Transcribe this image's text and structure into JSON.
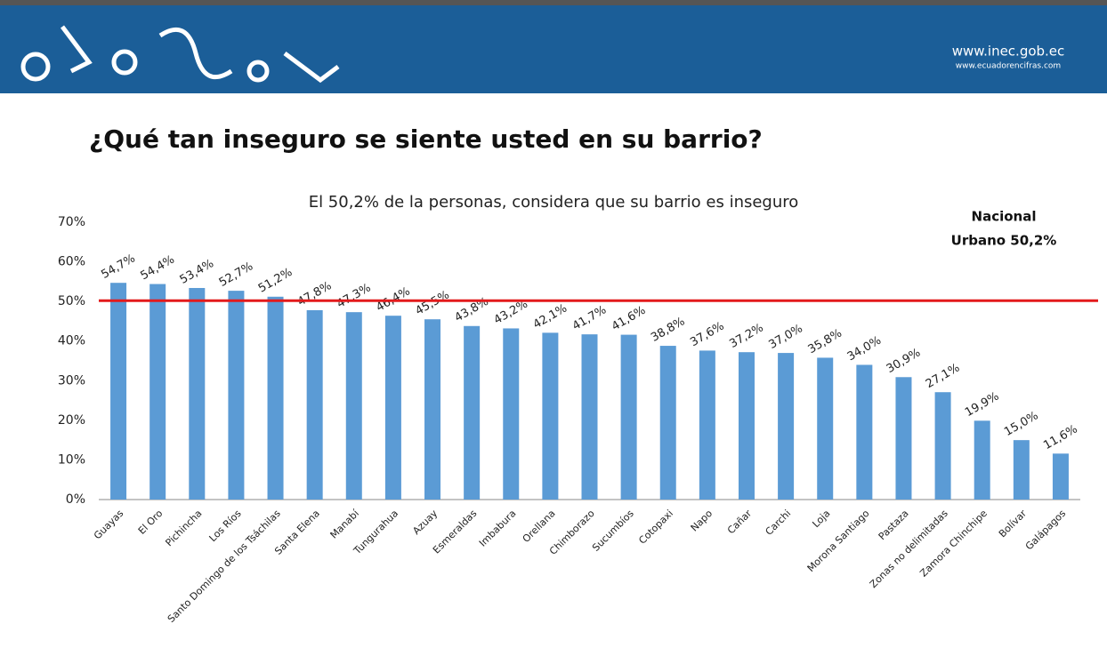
{
  "header": {
    "site": "www.inec.gob.ec",
    "site_secondary": "www.ecuadorencifras.com"
  },
  "page_title": "¿Qué tan inseguro se siente usted en su barrio?",
  "chart_data": {
    "type": "bar",
    "title": "El 50,2% de la personas, considera que su barrio es inseguro",
    "categories": [
      "Guayas",
      "El Oro",
      "Pichincha",
      "Los Ríos",
      "Santo Domingo de los Tsáchilas",
      "Santa Elena",
      "Manabí",
      "Tungurahua",
      "Azuay",
      "Esmeraldas",
      "Imbabura",
      "Orellana",
      "Chimborazo",
      "Sucumbíos",
      "Cotopaxi",
      "Napo",
      "Cañar",
      "Carchi",
      "Loja",
      "Morona Santiago",
      "Pastaza",
      "Zonas no delimitadas",
      "Zamora Chinchipe",
      "Bolívar",
      "Galápagos"
    ],
    "values": [
      54.7,
      54.4,
      53.4,
      52.7,
      51.2,
      47.8,
      47.3,
      46.4,
      45.5,
      43.8,
      43.2,
      42.1,
      41.7,
      41.6,
      38.8,
      37.6,
      37.2,
      37.0,
      35.8,
      34.0,
      30.9,
      27.1,
      19.9,
      15.0,
      11.6
    ],
    "value_labels": [
      "54,7%",
      "54,4%",
      "53,4%",
      "52,7%",
      "51,2%",
      "47,8%",
      "47,3%",
      "46,4%",
      "45,5%",
      "43,8%",
      "43,2%",
      "42,1%",
      "41,7%",
      "41,6%",
      "38,8%",
      "37,6%",
      "37,2%",
      "37,0%",
      "35,8%",
      "34,0%",
      "30,9%",
      "27,1%",
      "19,9%",
      "15,0%",
      "11,6%"
    ],
    "color": "#5b9bd5",
    "ylim": [
      0,
      70
    ],
    "yticks": [
      {
        "value": 0,
        "label": "0%"
      },
      {
        "value": 10,
        "label": "10%"
      },
      {
        "value": 20,
        "label": "20%"
      },
      {
        "value": 30,
        "label": "30%"
      },
      {
        "value": 40,
        "label": "40%"
      },
      {
        "value": 50,
        "label": "50%"
      },
      {
        "value": 60,
        "label": "60%"
      },
      {
        "value": 70,
        "label": "70%"
      }
    ],
    "grid": false,
    "reference": {
      "value": 50.2,
      "color": "#e31a1c",
      "label_lines": [
        "Nacional",
        "Urbano 50,2%"
      ]
    }
  }
}
